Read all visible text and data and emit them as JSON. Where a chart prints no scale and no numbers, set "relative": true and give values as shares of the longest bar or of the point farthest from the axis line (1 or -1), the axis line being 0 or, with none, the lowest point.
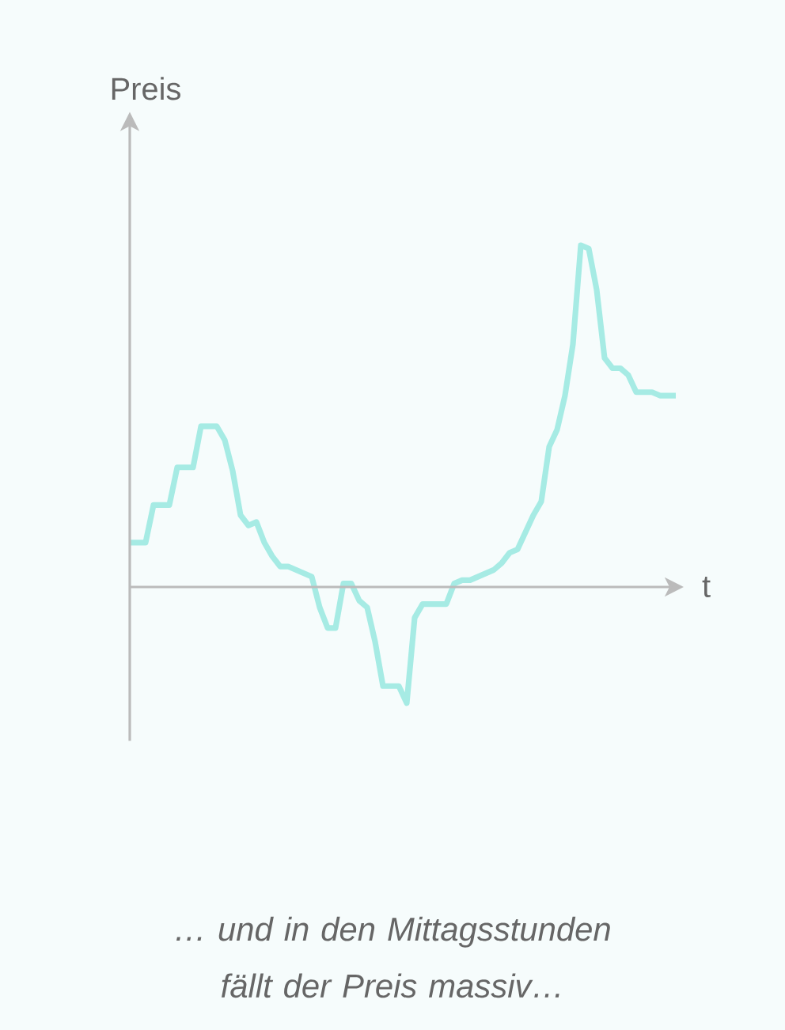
{
  "chart_data": {
    "type": "line",
    "relative": true,
    "xlabel": "t",
    "ylabel": "Preis",
    "annotations": [
      "… und in den Mittagsstunden fällt der Preis massiv…"
    ],
    "categories": [
      null,
      null,
      null,
      null,
      null,
      null,
      null,
      null,
      null,
      null,
      null,
      null,
      null,
      null,
      null,
      null,
      null,
      null,
      null,
      null,
      null,
      null,
      null,
      null,
      null,
      null,
      null,
      null,
      null,
      null,
      null,
      null,
      null,
      null,
      null,
      null,
      null,
      null,
      null,
      null,
      null,
      null,
      null,
      null,
      null,
      null,
      null,
      null,
      null,
      null,
      null,
      null,
      null,
      null,
      null,
      null,
      null,
      null,
      null,
      null,
      null,
      null,
      null,
      null,
      null,
      null,
      null,
      null,
      null,
      null
    ],
    "series": [
      {
        "color": "#a6ebe4",
        "values": [
          0.13,
          0.13,
          0.13,
          0.24,
          0.24,
          0.24,
          0.35,
          0.35,
          0.35,
          0.47,
          0.47,
          0.47,
          0.43,
          0.34,
          0.21,
          0.18,
          0.19,
          0.13,
          0.09,
          0.06,
          0.06,
          0.05,
          0.04,
          0.03,
          -0.06,
          -0.12,
          -0.12,
          0.01,
          0.01,
          -0.04,
          -0.06,
          -0.16,
          -0.29,
          -0.29,
          -0.29,
          -0.34,
          -0.09,
          -0.05,
          -0.05,
          -0.05,
          -0.05,
          0.01,
          0.02,
          0.02,
          0.03,
          0.04,
          0.05,
          0.07,
          0.1,
          0.11,
          0.16,
          0.21,
          0.25,
          0.41,
          0.46,
          0.56,
          0.71,
          1,
          0.99,
          0.87,
          0.67,
          0.64,
          0.64,
          0.62,
          0.57,
          0.57,
          0.57,
          0.56,
          0.56,
          0.56
        ]
      }
    ]
  }
}
